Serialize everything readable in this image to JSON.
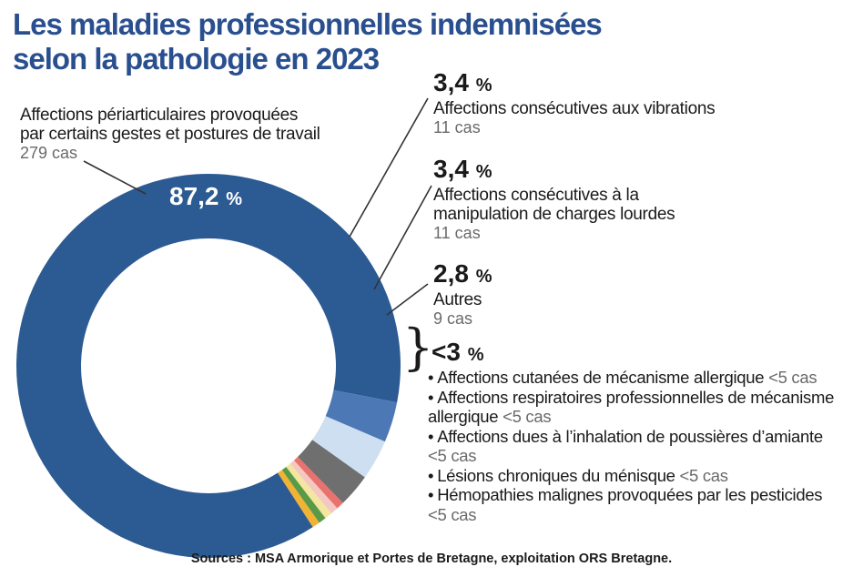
{
  "title": {
    "line1": "Les maladies professionnelles indemnisées",
    "line2": "selon la pathologie en 2023"
  },
  "chart_data": {
    "type": "pie",
    "title": "Les maladies professionnelles indemnisées selon la pathologie en 2023",
    "slices": [
      {
        "label": "Affections périarticulaires provoquées par certains gestes et postures de travail",
        "percent": 87.2,
        "cases": "279 cas",
        "color": "#2c5a93"
      },
      {
        "label": "Affections consécutives aux vibrations",
        "percent": 3.4,
        "cases": "11 cas",
        "color": "#4c79b6"
      },
      {
        "label": "Affections consécutives à la manipulation de charges lourdes",
        "percent": 3.4,
        "cases": "11 cas",
        "color": "#cddff0"
      },
      {
        "label": "Autres",
        "percent": 2.8,
        "cases": "9 cas",
        "color": "#6f6f6f"
      },
      {
        "label": "Affections cutanées de mécanisme allergique",
        "percent": 0.64,
        "cases": "<5 cas",
        "color": "#e9716e"
      },
      {
        "label": "Affections respiratoires professionnelles de mécanisme allergique",
        "percent": 0.64,
        "cases": "<5 cas",
        "color": "#f4c7c1"
      },
      {
        "label": "Affections dues à l’inhalation de poussières d’amiante",
        "percent": 0.64,
        "cases": "<5 cas",
        "color": "#f2e6a0"
      },
      {
        "label": "Lésions chroniques du ménisque",
        "percent": 0.64,
        "cases": "<5 cas",
        "color": "#5a9a46"
      },
      {
        "label": "Hémopathies malignes provoquées par les pesticides",
        "percent": 0.64,
        "cases": "<5 cas",
        "color": "#f2b233"
      }
    ]
  },
  "labels": {
    "big": {
      "pct": "87,2",
      "unit": "%",
      "name_line1": "Affections périarticulaires provoquées",
      "name_line2": "par certains gestes et postures de travail",
      "cases": "279 cas"
    },
    "vib": {
      "pct": "3,4",
      "unit": "%",
      "name": "Affections consécutives aux vibrations",
      "cases": "11 cas"
    },
    "charges": {
      "pct": "3,4",
      "unit": "%",
      "name_line1": "Affections consécutives à la",
      "name_line2": "manipulation de charges lourdes",
      "cases": "11 cas"
    },
    "autres": {
      "pct": "2,8",
      "unit": "%",
      "name": "Autres",
      "cases": "9 cas"
    },
    "small": {
      "pct": "<3",
      "unit": "%",
      "brace": "}",
      "bullet": "•",
      "items": [
        {
          "line1": "Affections cutanées de mécanisme allergique",
          "cases": "<5 cas"
        },
        {
          "line1": "Affections respiratoires professionnelles de mécanisme",
          "line2": "allergique",
          "cases": "<5 cas"
        },
        {
          "line1": "Affections dues à l’inhalation de poussières d’amiante",
          "cases": "<5 cas"
        },
        {
          "line1": "Lésions chroniques du ménisque",
          "cases": "<5 cas"
        },
        {
          "line1": "Hémopathies malignes provoquées par les pesticides",
          "cases": "<5 cas"
        }
      ]
    }
  },
  "source": "Sources : MSA Armorique et Portes de Bretagne, exploitation ORS Bretagne."
}
